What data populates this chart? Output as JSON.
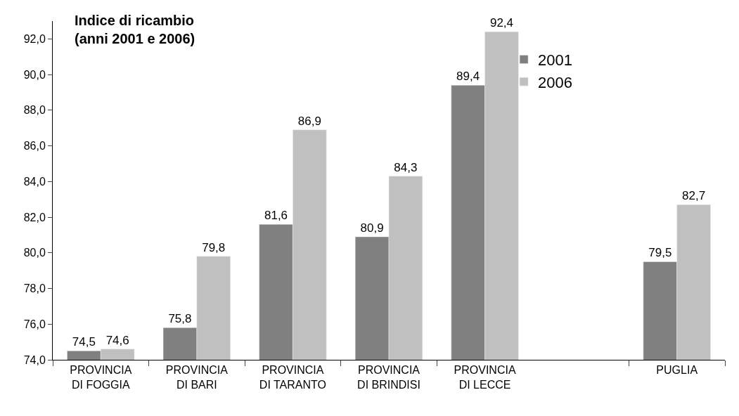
{
  "chart_data": {
    "type": "bar",
    "title": "Indice di ricambio\n(anni 2001 e 2006)",
    "categories": [
      "PROVINCIA\nDI FOGGIA",
      "PROVINCIA\nDI BARI",
      "PROVINCIA\nDI TARANTO",
      "PROVINCIA\nDI BRINDISI",
      "PROVINCIA\nDI LECCE",
      null,
      "PUGLIA"
    ],
    "series": [
      {
        "name": "2001",
        "color": "#808080",
        "values": [
          74.5,
          75.8,
          81.6,
          80.9,
          89.4,
          null,
          79.5
        ],
        "value_labels": [
          "74,5",
          "75,8",
          "81,6",
          "80,9",
          "89,4",
          null,
          "79,5"
        ]
      },
      {
        "name": "2006",
        "color": "#c0c0c0",
        "values": [
          74.6,
          79.8,
          86.9,
          84.3,
          92.4,
          null,
          82.7
        ],
        "value_labels": [
          "74,6",
          "79,8",
          "86,9",
          "84,3",
          "92,4",
          null,
          "82,7"
        ]
      }
    ],
    "ylim": [
      74,
      93
    ],
    "yticks": [
      {
        "value": 74,
        "label": "74,0"
      },
      {
        "value": 76,
        "label": "76,0"
      },
      {
        "value": 78,
        "label": "78,0"
      },
      {
        "value": 80,
        "label": "80,0"
      },
      {
        "value": 82,
        "label": "82,0"
      },
      {
        "value": 84,
        "label": "84,0"
      },
      {
        "value": 86,
        "label": "86,0"
      },
      {
        "value": 88,
        "label": "88,0"
      },
      {
        "value": 90,
        "label": "90,0"
      },
      {
        "value": 92,
        "label": "92,0"
      }
    ],
    "legend": "top right"
  }
}
